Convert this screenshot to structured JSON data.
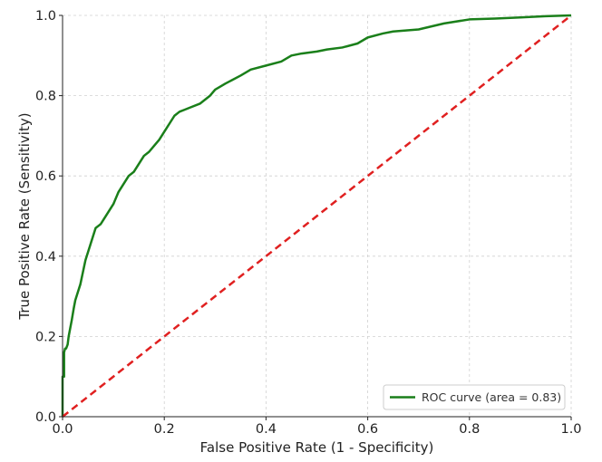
{
  "chart_data": {
    "type": "line",
    "title": "",
    "xlabel": "False Positive Rate (1 - Specificity)",
    "ylabel": "True Positive Rate (Sensitivity)",
    "xlim": [
      0.0,
      1.0
    ],
    "ylim": [
      0.0,
      1.0
    ],
    "xticks": [
      0.0,
      0.2,
      0.4,
      0.6,
      0.8,
      1.0
    ],
    "yticks": [
      0.0,
      0.2,
      0.4,
      0.6,
      0.8,
      1.0
    ],
    "xtick_labels": [
      "0.0",
      "0.2",
      "0.4",
      "0.6",
      "0.8",
      "1.0"
    ],
    "ytick_labels": [
      "0.0",
      "0.2",
      "0.4",
      "0.6",
      "0.8",
      "1.0"
    ],
    "grid": true,
    "legend_position": "bottom-right",
    "series": [
      {
        "name": "ROC curve (area = 0.83)",
        "color": "#1a7f1a",
        "style": "solid",
        "x": [
          0.0,
          0.0,
          0.003,
          0.003,
          0.005,
          0.007,
          0.01,
          0.012,
          0.015,
          0.018,
          0.022,
          0.025,
          0.03,
          0.035,
          0.04,
          0.045,
          0.05,
          0.055,
          0.06,
          0.065,
          0.07,
          0.075,
          0.08,
          0.09,
          0.1,
          0.11,
          0.12,
          0.13,
          0.14,
          0.15,
          0.16,
          0.17,
          0.18,
          0.19,
          0.2,
          0.21,
          0.22,
          0.23,
          0.24,
          0.25,
          0.27,
          0.29,
          0.3,
          0.32,
          0.35,
          0.37,
          0.4,
          0.43,
          0.45,
          0.47,
          0.5,
          0.52,
          0.55,
          0.58,
          0.6,
          0.63,
          0.65,
          0.7,
          0.75,
          0.8,
          0.85,
          0.9,
          0.95,
          1.0
        ],
        "y": [
          0.0,
          0.1,
          0.1,
          0.16,
          0.17,
          0.17,
          0.18,
          0.2,
          0.22,
          0.24,
          0.27,
          0.29,
          0.31,
          0.33,
          0.36,
          0.39,
          0.41,
          0.43,
          0.45,
          0.47,
          0.475,
          0.48,
          0.49,
          0.51,
          0.53,
          0.56,
          0.58,
          0.6,
          0.61,
          0.63,
          0.65,
          0.66,
          0.675,
          0.69,
          0.71,
          0.73,
          0.75,
          0.76,
          0.765,
          0.77,
          0.78,
          0.8,
          0.815,
          0.83,
          0.85,
          0.865,
          0.875,
          0.885,
          0.9,
          0.905,
          0.91,
          0.915,
          0.92,
          0.93,
          0.945,
          0.955,
          0.96,
          0.965,
          0.98,
          0.99,
          0.992,
          0.995,
          0.998,
          1.0
        ]
      },
      {
        "name": "",
        "color": "#e02020",
        "style": "dashed",
        "x": [
          0.0,
          1.0
        ],
        "y": [
          0.0,
          1.0
        ]
      }
    ],
    "legend": [
      {
        "label": "ROC curve (area = 0.83)",
        "color": "#1a7f1a"
      }
    ]
  }
}
